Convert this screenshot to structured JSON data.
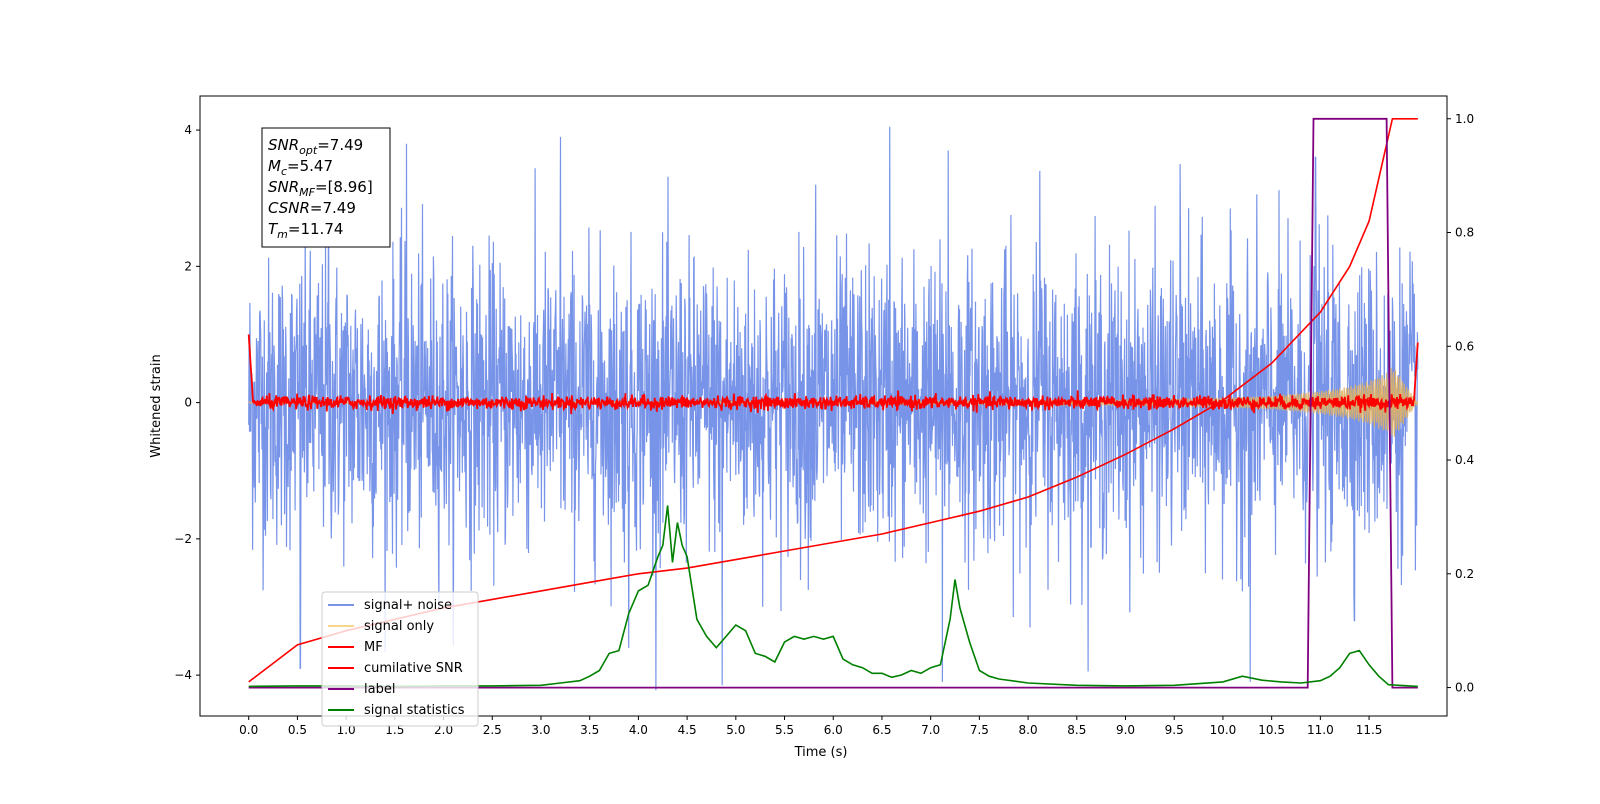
{
  "chart_data": {
    "type": "line",
    "title": "",
    "xlabel": "Time (s)",
    "ylabel": "Whitened strain",
    "xlim": [
      -0.5,
      12.3
    ],
    "ylim": [
      -4.6,
      4.5
    ],
    "ylim_right": [
      -0.05,
      1.04
    ],
    "x_ticks": [
      0.0,
      0.5,
      1.0,
      1.5,
      2.0,
      2.5,
      3.0,
      3.5,
      4.0,
      4.5,
      5.0,
      5.5,
      6.0,
      6.5,
      7.0,
      7.5,
      8.0,
      8.5,
      9.0,
      9.5,
      10.0,
      10.5,
      11.0,
      11.5
    ],
    "x_tick_labels": [
      "0.0",
      "0.5",
      "1.0",
      "1.5",
      "2.0",
      "2.5",
      "3.0",
      "3.5",
      "4.0",
      "4.5",
      "5.0",
      "5.5",
      "6.0",
      "6.5",
      "7.0",
      "7.5",
      "8.0",
      "8.5",
      "9.0",
      "9.5",
      "10.0",
      "10.5",
      "11.0",
      "11.5"
    ],
    "y_ticks_left": [
      -4,
      -2,
      0,
      2,
      4
    ],
    "y_tick_labels_left": [
      "−4",
      "−2",
      "0",
      "2",
      "4"
    ],
    "y_ticks_right": [
      0.0,
      0.2,
      0.4,
      0.6,
      0.8,
      1.0
    ],
    "y_tick_labels_right": [
      "0.0",
      "0.2",
      "0.4",
      "0.6",
      "0.8",
      "1.0"
    ],
    "grid": false,
    "legend_position": "lower-left",
    "legend": [
      {
        "label": "signal+ noise",
        "color": "#7894e8"
      },
      {
        "label": "signal only",
        "color": "#f7d58a"
      },
      {
        "label": "MF",
        "color": "#ff0000"
      },
      {
        "label": "cumilative SNR",
        "color": "#ff0000"
      },
      {
        "label": "label",
        "color": "#800080"
      },
      {
        "label": "signal statistics",
        "color": "#008000"
      }
    ],
    "annotation_lines": [
      {
        "name": "SNR",
        "sub": "opt",
        "value": "=7.49"
      },
      {
        "name": "M",
        "sub": "c",
        "value": "=5.47"
      },
      {
        "name": "SNR",
        "sub": "MF",
        "value": "=[8.96]"
      },
      {
        "name": "CSNR",
        "sub": "",
        "value": "=7.49"
      },
      {
        "name": "T",
        "sub": "m",
        "value": "=11.74"
      }
    ],
    "series": [
      {
        "name": "signal+ noise",
        "axis": "left",
        "description_of_render": "dense noise band, x from 0 to 12.0",
        "band_envelope": {
          "x": [
            0.0,
            12.0
          ],
          "upper_typical": 2.3,
          "lower_typical": -2.3
        },
        "peaks": [
          {
            "x": 0.82,
            "y": 3.7
          },
          {
            "x": 1.62,
            "y": 3.8
          },
          {
            "x": 3.2,
            "y": 3.9
          },
          {
            "x": 5.82,
            "y": 3.2
          },
          {
            "x": 6.58,
            "y": 4.05
          },
          {
            "x": 7.18,
            "y": 3.7
          },
          {
            "x": 8.12,
            "y": 3.4
          },
          {
            "x": 9.56,
            "y": 3.5
          },
          {
            "x": 10.95,
            "y": 3.6
          }
        ],
        "troughs": [
          {
            "x": 0.53,
            "y": -3.9
          },
          {
            "x": 3.9,
            "y": -3.6
          },
          {
            "x": 4.86,
            "y": -4.15
          },
          {
            "x": 7.12,
            "y": -4.1
          },
          {
            "x": 10.28,
            "y": -4.1
          },
          {
            "x": 11.35,
            "y": -3.2
          }
        ]
      },
      {
        "name": "signal only",
        "axis": "left",
        "description_of_render": "chirp with growing amplitude toward merger",
        "amplitude_envelope": {
          "x": [
            0,
            2,
            4,
            6,
            8,
            9,
            10,
            10.5,
            11,
            11.3,
            11.5,
            11.7,
            11.74,
            12.0
          ],
          "y": [
            0.01,
            0.01,
            0.015,
            0.02,
            0.03,
            0.04,
            0.07,
            0.1,
            0.17,
            0.24,
            0.32,
            0.45,
            0.55,
            0.0
          ]
        }
      },
      {
        "name": "MF",
        "axis": "left",
        "description_of_render": "noisy red trace near zero",
        "band_envelope": {
          "x": [
            0.0,
            12.0
          ],
          "upper_typical": 0.1,
          "lower_typical": -0.1
        },
        "x": [
          0.0,
          0.02,
          0.05,
          12.0
        ],
        "y": [
          1.0,
          0.2,
          0.0,
          0.9
        ]
      },
      {
        "name": "cumilative SNR",
        "axis": "right",
        "x": [
          0.0,
          0.5,
          1.0,
          1.5,
          2.0,
          2.5,
          3.0,
          3.5,
          4.0,
          4.5,
          5.0,
          5.5,
          6.0,
          6.5,
          7.0,
          7.5,
          8.0,
          8.5,
          9.0,
          9.5,
          10.0,
          10.5,
          11.0,
          11.3,
          11.5,
          11.74,
          12.0
        ],
        "y": [
          0.01,
          0.075,
          0.1,
          0.12,
          0.14,
          0.155,
          0.17,
          0.185,
          0.2,
          0.21,
          0.225,
          0.24,
          0.255,
          0.27,
          0.29,
          0.31,
          0.335,
          0.37,
          0.41,
          0.455,
          0.505,
          0.57,
          0.66,
          0.74,
          0.82,
          1.0,
          1.0
        ]
      },
      {
        "name": "label",
        "axis": "right",
        "x": [
          0.0,
          10.87,
          10.93,
          11.68,
          11.74,
          12.0
        ],
        "y": [
          0.0,
          0.0,
          1.0,
          1.0,
          0.0,
          0.0
        ]
      },
      {
        "name": "signal statistics",
        "axis": "right",
        "x": [
          0.0,
          0.5,
          1.0,
          1.5,
          2.0,
          2.5,
          3.0,
          3.2,
          3.4,
          3.5,
          3.6,
          3.7,
          3.8,
          3.9,
          4.0,
          4.1,
          4.2,
          4.25,
          4.3,
          4.35,
          4.4,
          4.45,
          4.5,
          4.6,
          4.7,
          4.8,
          4.9,
          5.0,
          5.1,
          5.2,
          5.3,
          5.4,
          5.5,
          5.6,
          5.7,
          5.8,
          5.9,
          6.0,
          6.1,
          6.2,
          6.3,
          6.4,
          6.5,
          6.6,
          6.7,
          6.8,
          6.9,
          7.0,
          7.1,
          7.2,
          7.25,
          7.3,
          7.4,
          7.5,
          7.6,
          7.7,
          8.0,
          8.5,
          9.0,
          9.5,
          10.0,
          10.2,
          10.4,
          10.6,
          10.8,
          11.0,
          11.1,
          11.2,
          11.3,
          11.4,
          11.5,
          11.6,
          11.7,
          12.0
        ],
        "y": [
          0.002,
          0.003,
          0.003,
          0.002,
          0.003,
          0.003,
          0.004,
          0.008,
          0.012,
          0.02,
          0.03,
          0.06,
          0.065,
          0.13,
          0.17,
          0.18,
          0.23,
          0.25,
          0.32,
          0.22,
          0.29,
          0.25,
          0.23,
          0.12,
          0.09,
          0.07,
          0.09,
          0.11,
          0.1,
          0.06,
          0.055,
          0.045,
          0.08,
          0.09,
          0.085,
          0.09,
          0.085,
          0.09,
          0.05,
          0.04,
          0.035,
          0.025,
          0.025,
          0.018,
          0.022,
          0.03,
          0.025,
          0.035,
          0.04,
          0.12,
          0.19,
          0.14,
          0.08,
          0.03,
          0.02,
          0.015,
          0.008,
          0.004,
          0.003,
          0.004,
          0.01,
          0.02,
          0.013,
          0.01,
          0.008,
          0.012,
          0.02,
          0.035,
          0.06,
          0.065,
          0.04,
          0.02,
          0.005,
          0.002
        ]
      }
    ]
  }
}
